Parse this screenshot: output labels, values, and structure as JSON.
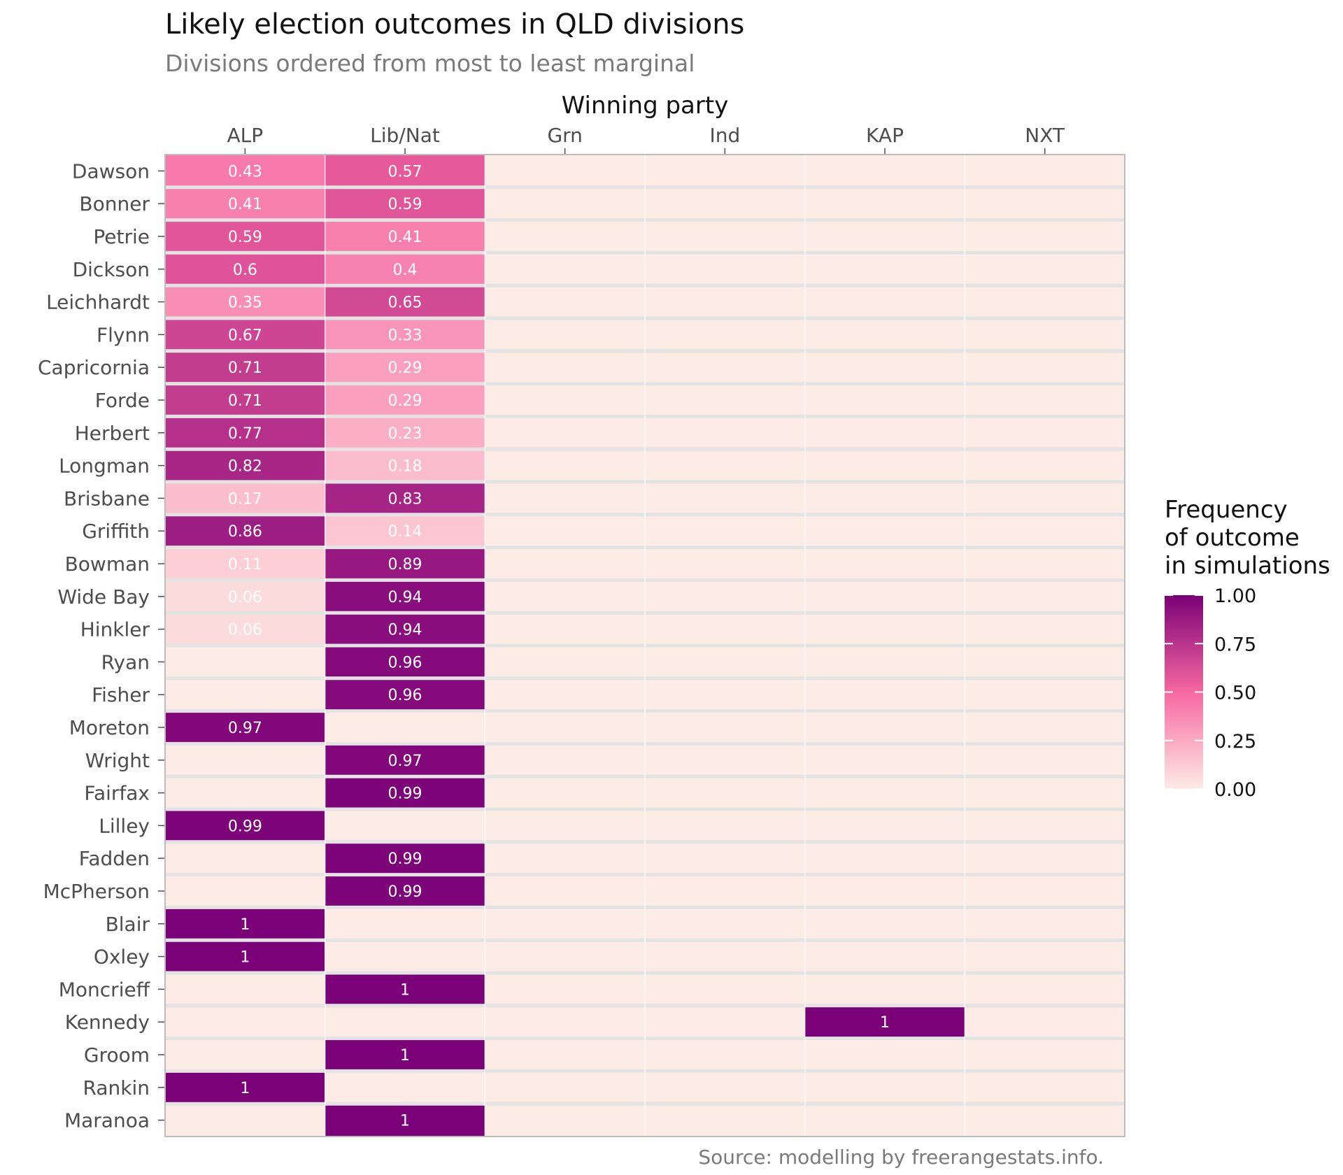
{
  "title": "Likely election outcomes in QLD divisions",
  "subtitle": "Divisions ordered from most to least marginal",
  "caption": "Source: modelling by freerangestats.info.",
  "colors": {
    "low": "#fdebe5",
    "mid": "#f768a1",
    "high": "#7a0177",
    "panel_border": "#bdbdbd",
    "row_separator": "#e3e3e3",
    "column_separator": "#ffffff"
  },
  "chart_data": {
    "type": "heatmap",
    "xlabel": "Winning party",
    "x": [
      "ALP",
      "Lib/Nat",
      "Grn",
      "Ind",
      "KAP",
      "NXT"
    ],
    "y": [
      "Dawson",
      "Bonner",
      "Petrie",
      "Dickson",
      "Leichhardt",
      "Flynn",
      "Capricornia",
      "Forde",
      "Herbert",
      "Longman",
      "Brisbane",
      "Griffith",
      "Bowman",
      "Wide Bay",
      "Hinkler",
      "Ryan",
      "Fisher",
      "Moreton",
      "Wright",
      "Fairfax",
      "Lilley",
      "Fadden",
      "McPherson",
      "Blair",
      "Oxley",
      "Moncrieff",
      "Kennedy",
      "Groom",
      "Rankin",
      "Maranoa"
    ],
    "cells": [
      {
        "division": "Dawson",
        "party": "ALP",
        "value": 0.43,
        "label": "0.43"
      },
      {
        "division": "Dawson",
        "party": "Lib/Nat",
        "value": 0.57,
        "label": "0.57"
      },
      {
        "division": "Bonner",
        "party": "ALP",
        "value": 0.41,
        "label": "0.41"
      },
      {
        "division": "Bonner",
        "party": "Lib/Nat",
        "value": 0.59,
        "label": "0.59"
      },
      {
        "division": "Petrie",
        "party": "ALP",
        "value": 0.59,
        "label": "0.59"
      },
      {
        "division": "Petrie",
        "party": "Lib/Nat",
        "value": 0.41,
        "label": "0.41"
      },
      {
        "division": "Dickson",
        "party": "ALP",
        "value": 0.6,
        "label": "0.6"
      },
      {
        "division": "Dickson",
        "party": "Lib/Nat",
        "value": 0.4,
        "label": "0.4"
      },
      {
        "division": "Leichhardt",
        "party": "ALP",
        "value": 0.35,
        "label": "0.35"
      },
      {
        "division": "Leichhardt",
        "party": "Lib/Nat",
        "value": 0.65,
        "label": "0.65"
      },
      {
        "division": "Flynn",
        "party": "ALP",
        "value": 0.67,
        "label": "0.67"
      },
      {
        "division": "Flynn",
        "party": "Lib/Nat",
        "value": 0.33,
        "label": "0.33"
      },
      {
        "division": "Capricornia",
        "party": "ALP",
        "value": 0.71,
        "label": "0.71"
      },
      {
        "division": "Capricornia",
        "party": "Lib/Nat",
        "value": 0.29,
        "label": "0.29"
      },
      {
        "division": "Forde",
        "party": "ALP",
        "value": 0.71,
        "label": "0.71"
      },
      {
        "division": "Forde",
        "party": "Lib/Nat",
        "value": 0.29,
        "label": "0.29"
      },
      {
        "division": "Herbert",
        "party": "ALP",
        "value": 0.77,
        "label": "0.77"
      },
      {
        "division": "Herbert",
        "party": "Lib/Nat",
        "value": 0.23,
        "label": "0.23"
      },
      {
        "division": "Longman",
        "party": "ALP",
        "value": 0.82,
        "label": "0.82"
      },
      {
        "division": "Longman",
        "party": "Lib/Nat",
        "value": 0.18,
        "label": "0.18"
      },
      {
        "division": "Brisbane",
        "party": "ALP",
        "value": 0.17,
        "label": "0.17"
      },
      {
        "division": "Brisbane",
        "party": "Lib/Nat",
        "value": 0.83,
        "label": "0.83"
      },
      {
        "division": "Griffith",
        "party": "ALP",
        "value": 0.86,
        "label": "0.86"
      },
      {
        "division": "Griffith",
        "party": "Lib/Nat",
        "value": 0.14,
        "label": "0.14"
      },
      {
        "division": "Bowman",
        "party": "ALP",
        "value": 0.11,
        "label": "0.11"
      },
      {
        "division": "Bowman",
        "party": "Lib/Nat",
        "value": 0.89,
        "label": "0.89"
      },
      {
        "division": "Wide Bay",
        "party": "ALP",
        "value": 0.06,
        "label": "0.06"
      },
      {
        "division": "Wide Bay",
        "party": "Lib/Nat",
        "value": 0.94,
        "label": "0.94"
      },
      {
        "division": "Hinkler",
        "party": "ALP",
        "value": 0.06,
        "label": "0.06"
      },
      {
        "division": "Hinkler",
        "party": "Lib/Nat",
        "value": 0.94,
        "label": "0.94"
      },
      {
        "division": "Ryan",
        "party": "Lib/Nat",
        "value": 0.96,
        "label": "0.96"
      },
      {
        "division": "Fisher",
        "party": "Lib/Nat",
        "value": 0.96,
        "label": "0.96"
      },
      {
        "division": "Moreton",
        "party": "ALP",
        "value": 0.97,
        "label": "0.97"
      },
      {
        "division": "Wright",
        "party": "Lib/Nat",
        "value": 0.97,
        "label": "0.97"
      },
      {
        "division": "Fairfax",
        "party": "Lib/Nat",
        "value": 0.99,
        "label": "0.99"
      },
      {
        "division": "Lilley",
        "party": "ALP",
        "value": 0.99,
        "label": "0.99"
      },
      {
        "division": "Fadden",
        "party": "Lib/Nat",
        "value": 0.99,
        "label": "0.99"
      },
      {
        "division": "McPherson",
        "party": "Lib/Nat",
        "value": 0.99,
        "label": "0.99"
      },
      {
        "division": "Blair",
        "party": "ALP",
        "value": 1,
        "label": "1"
      },
      {
        "division": "Oxley",
        "party": "ALP",
        "value": 1,
        "label": "1"
      },
      {
        "division": "Moncrieff",
        "party": "Lib/Nat",
        "value": 1,
        "label": "1"
      },
      {
        "division": "Kennedy",
        "party": "KAP",
        "value": 1,
        "label": "1"
      },
      {
        "division": "Groom",
        "party": "Lib/Nat",
        "value": 1,
        "label": "1"
      },
      {
        "division": "Rankin",
        "party": "ALP",
        "value": 1,
        "label": "1"
      },
      {
        "division": "Maranoa",
        "party": "Lib/Nat",
        "value": 1,
        "label": "1"
      }
    ],
    "legend": {
      "title_lines": [
        "Frequency",
        "of outcome",
        "in simulations"
      ],
      "ticks": [
        "1.00",
        "0.75",
        "0.50",
        "0.25",
        "0.00"
      ],
      "tick_values": [
        1,
        0.75,
        0.5,
        0.25,
        0
      ],
      "range": [
        0,
        1
      ],
      "placement": "right"
    }
  }
}
